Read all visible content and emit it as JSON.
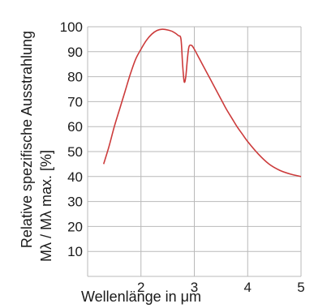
{
  "chart_data": {
    "type": "line",
    "xlabel": "Wellenlänge in μm",
    "ylabel_line1": "Relative spezifische Ausstrahlung",
    "ylabel_line2": "Mλ / Mλ  max. [%]",
    "xlim": [
      1.0,
      5.0
    ],
    "ylim": [
      0,
      100
    ],
    "x_ticks": [
      {
        "value": 2,
        "label": "2"
      },
      {
        "value": 3,
        "label": "3"
      },
      {
        "value": 4,
        "label": "4"
      },
      {
        "value": 5,
        "label": "5"
      }
    ],
    "y_ticks": [
      {
        "value": 10,
        "label": "10"
      },
      {
        "value": 20,
        "label": "20"
      },
      {
        "value": 30,
        "label": "30"
      },
      {
        "value": 40,
        "label": "40"
      },
      {
        "value": 50,
        "label": "50"
      },
      {
        "value": 60,
        "label": "60"
      },
      {
        "value": 70,
        "label": "70"
      },
      {
        "value": 80,
        "label": "80"
      },
      {
        "value": 90,
        "label": "90"
      },
      {
        "value": 100,
        "label": "100"
      }
    ],
    "grid": true,
    "series": [
      {
        "color": "#cc3b3b",
        "points": [
          [
            1.3,
            45
          ],
          [
            1.4,
            52
          ],
          [
            1.5,
            60
          ],
          [
            1.6,
            67
          ],
          [
            1.7,
            74
          ],
          [
            1.8,
            81
          ],
          [
            1.9,
            87
          ],
          [
            2.0,
            91
          ],
          [
            2.1,
            94.5
          ],
          [
            2.2,
            97
          ],
          [
            2.3,
            98.5
          ],
          [
            2.4,
            99
          ],
          [
            2.5,
            98.7
          ],
          [
            2.6,
            98
          ],
          [
            2.7,
            96.5
          ],
          [
            2.75,
            95
          ],
          [
            2.78,
            85
          ],
          [
            2.81,
            78
          ],
          [
            2.84,
            80
          ],
          [
            2.87,
            87
          ],
          [
            2.9,
            92
          ],
          [
            2.95,
            92.5
          ],
          [
            3.0,
            91
          ],
          [
            3.1,
            87
          ],
          [
            3.2,
            83
          ],
          [
            3.3,
            79
          ],
          [
            3.4,
            75
          ],
          [
            3.5,
            71
          ],
          [
            3.6,
            67
          ],
          [
            3.7,
            63.5
          ],
          [
            3.8,
            60
          ],
          [
            3.9,
            57
          ],
          [
            4.0,
            54
          ],
          [
            4.2,
            49
          ],
          [
            4.4,
            45
          ],
          [
            4.6,
            42.5
          ],
          [
            4.8,
            41
          ],
          [
            5.0,
            40
          ]
        ]
      }
    ]
  }
}
